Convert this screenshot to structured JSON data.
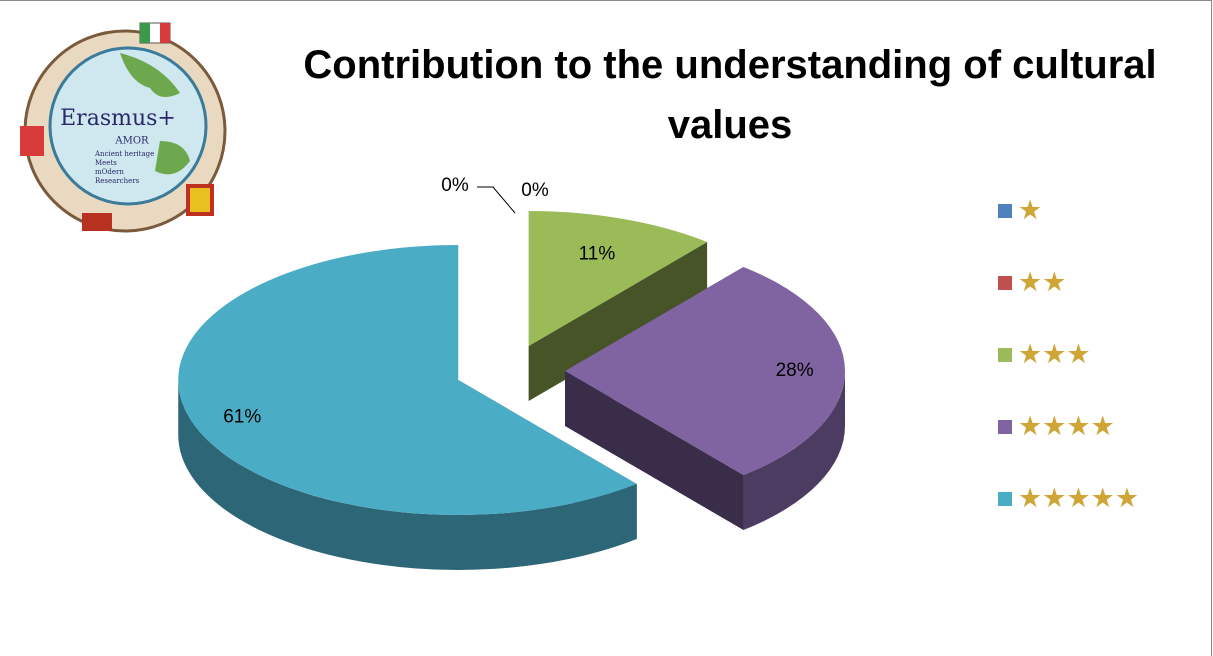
{
  "logo": {
    "title": "Erasmus+",
    "subtitle": "AMOR",
    "lines": [
      "Ancient heritage",
      "Meets",
      "mOdern",
      "Researchers"
    ]
  },
  "chart_data": {
    "type": "pie",
    "title": "Contribution to the understanding of cultural values",
    "categories": [
      "★",
      "★★",
      "★★★",
      "★★★★",
      "★★★★★"
    ],
    "values": [
      0,
      0,
      11,
      28,
      61
    ],
    "value_labels": [
      "0%",
      "0%",
      "11%",
      "28%",
      "61%"
    ],
    "colors": [
      "#4f81bd",
      "#c0504d",
      "#9bbb59",
      "#8064a2",
      "#4bacc6"
    ],
    "legend": "right"
  }
}
